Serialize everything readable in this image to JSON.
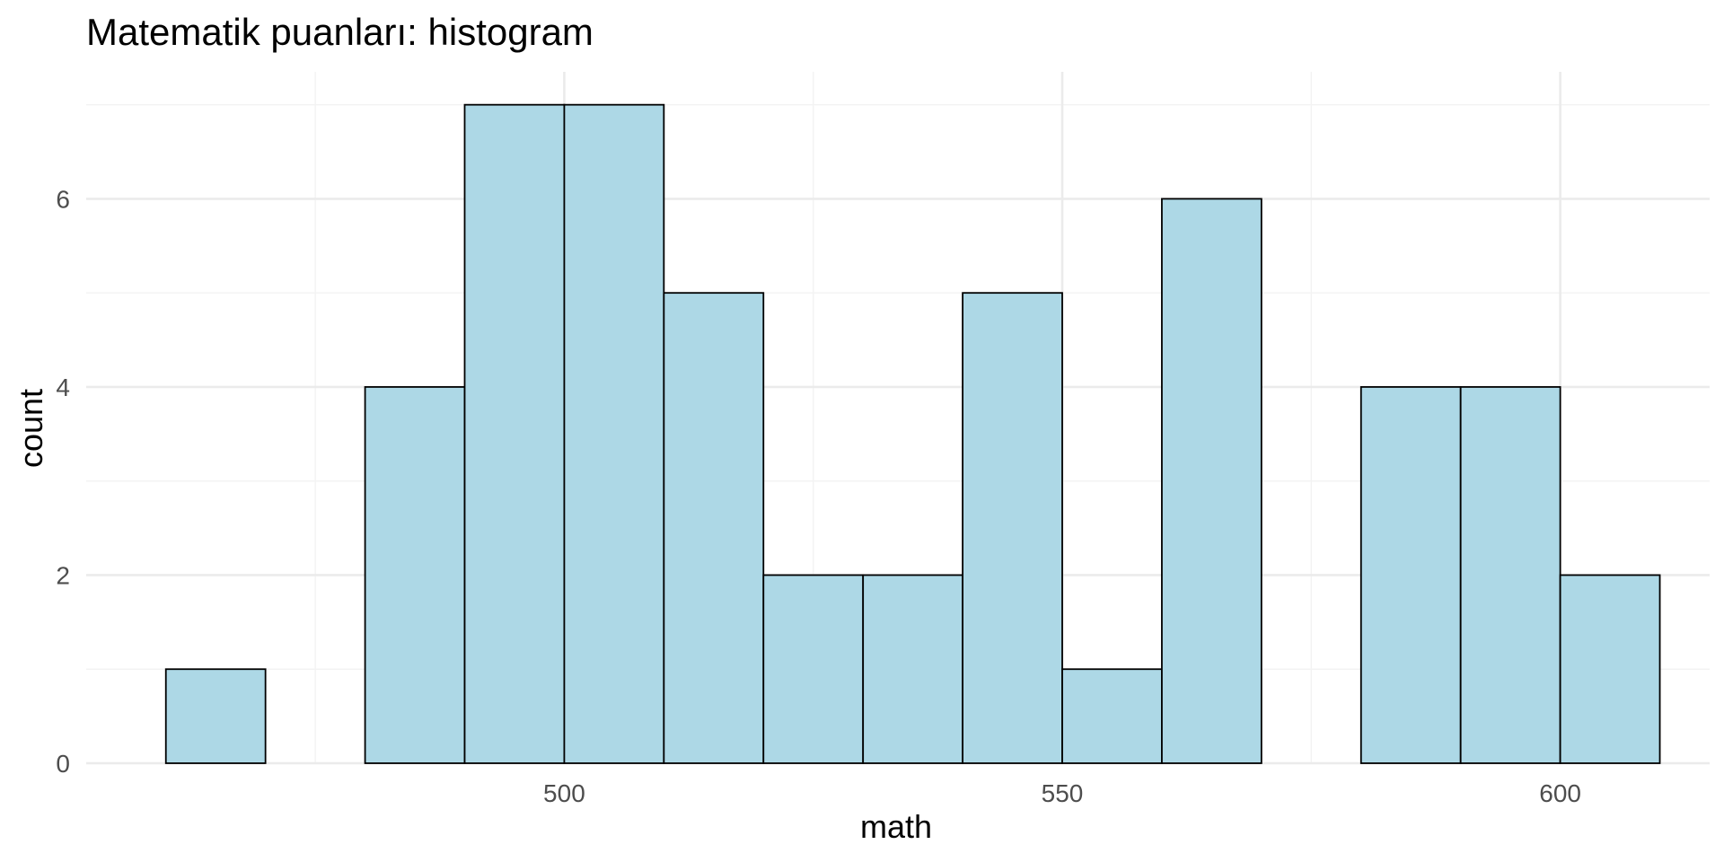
{
  "chart_data": {
    "type": "bar",
    "title": "Matematik puanları: histogram",
    "xlabel": "math",
    "ylabel": "count",
    "bin_width": 10,
    "bins": [
      {
        "start": 460,
        "end": 470,
        "count": 1
      },
      {
        "start": 470,
        "end": 480,
        "count": 0
      },
      {
        "start": 480,
        "end": 490,
        "count": 4
      },
      {
        "start": 490,
        "end": 500,
        "count": 7
      },
      {
        "start": 500,
        "end": 510,
        "count": 7
      },
      {
        "start": 510,
        "end": 520,
        "count": 5
      },
      {
        "start": 520,
        "end": 530,
        "count": 2
      },
      {
        "start": 530,
        "end": 540,
        "count": 2
      },
      {
        "start": 540,
        "end": 550,
        "count": 5
      },
      {
        "start": 550,
        "end": 560,
        "count": 1
      },
      {
        "start": 560,
        "end": 570,
        "count": 6
      },
      {
        "start": 570,
        "end": 580,
        "count": 0
      },
      {
        "start": 580,
        "end": 590,
        "count": 4
      },
      {
        "start": 590,
        "end": 600,
        "count": 4
      },
      {
        "start": 600,
        "end": 610,
        "count": 2
      }
    ],
    "xlim": [
      452,
      615
    ],
    "ylim": [
      0,
      7.35
    ],
    "x_ticks": [
      500,
      550,
      600
    ],
    "x_minor_ticks": [
      475,
      525,
      575
    ],
    "y_ticks": [
      0,
      2,
      4,
      6
    ],
    "y_minor_ticks": [
      1,
      3,
      5,
      7
    ],
    "grid": true,
    "legend": "none",
    "colors": {
      "bar_fill": "#add8e6",
      "bar_stroke": "#000000",
      "grid_major": "#ebebeb",
      "grid_minor": "#f3f3f3",
      "tick_text": "#4d4d4d"
    }
  }
}
